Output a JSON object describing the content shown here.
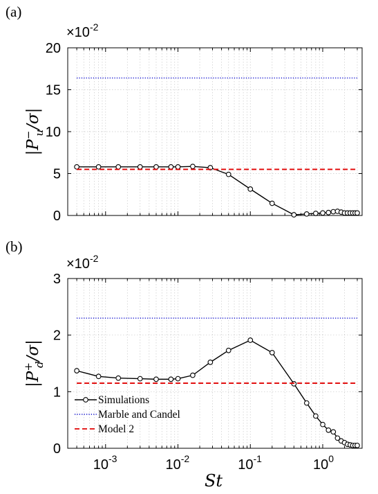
{
  "chart_data": [
    {
      "panel_label": "(a)",
      "type": "line",
      "xscale": "log",
      "xlim": [
        0.0003,
        3.5
      ],
      "ylim": [
        0,
        20
      ],
      "y_multiplier": "×10",
      "y_multiplier_exp": "-2",
      "yticks": [
        "0",
        "5",
        "10",
        "15",
        "20"
      ],
      "ylabel": "|P_u^- / σ|",
      "grid": true,
      "series": [
        {
          "name": "Simulations",
          "style": "black-solid-circles",
          "x": [
            0.0004,
            0.0008,
            0.0015,
            0.003,
            0.005,
            0.008,
            0.01,
            0.016,
            0.028,
            0.05,
            0.1,
            0.2,
            0.4,
            0.6,
            0.8,
            1.0,
            1.2,
            1.4,
            1.6,
            1.8,
            2.0,
            2.2,
            2.4,
            2.6,
            2.8,
            3.0
          ],
          "y": [
            5.8,
            5.8,
            5.8,
            5.8,
            5.8,
            5.8,
            5.8,
            5.85,
            5.7,
            4.9,
            3.15,
            1.45,
            0.08,
            0.18,
            0.25,
            0.3,
            0.35,
            0.45,
            0.5,
            0.4,
            0.3,
            0.3,
            0.3,
            0.3,
            0.3,
            0.3
          ]
        },
        {
          "name": "Marble and Candel",
          "style": "blue-dotted",
          "x": [
            0.0004,
            3.0
          ],
          "y": [
            16.4,
            16.4
          ]
        },
        {
          "name": "Model 2",
          "style": "red-dashed",
          "x": [
            0.0004,
            3.0
          ],
          "y": [
            5.5,
            5.5
          ]
        }
      ]
    },
    {
      "panel_label": "(b)",
      "type": "line",
      "xscale": "log",
      "xlim": [
        0.0003,
        3.5
      ],
      "ylim": [
        0,
        3
      ],
      "y_multiplier": "×10",
      "y_multiplier_exp": "-2",
      "yticks": [
        "0",
        "1",
        "2",
        "3"
      ],
      "xticks": [
        {
          "base": "10",
          "exp": "-3",
          "v": 0.001
        },
        {
          "base": "10",
          "exp": "-2",
          "v": 0.01
        },
        {
          "base": "10",
          "exp": "-1",
          "v": 0.1
        },
        {
          "base": "10",
          "exp": "0",
          "v": 1
        }
      ],
      "xlabel": "St",
      "ylabel": "|P_d^+ / σ|",
      "grid": true,
      "legend_position": "bottom-left",
      "series": [
        {
          "name": "Simulations",
          "style": "black-solid-circles",
          "x": [
            0.0004,
            0.0008,
            0.0015,
            0.003,
            0.005,
            0.008,
            0.01,
            0.016,
            0.028,
            0.05,
            0.1,
            0.2,
            0.4,
            0.6,
            0.8,
            1.0,
            1.2,
            1.4,
            1.6,
            1.8,
            2.0,
            2.2,
            2.4,
            2.6,
            2.8,
            3.0
          ],
          "y": [
            1.37,
            1.27,
            1.24,
            1.23,
            1.22,
            1.22,
            1.23,
            1.29,
            1.52,
            1.73,
            1.91,
            1.69,
            1.14,
            0.8,
            0.57,
            0.42,
            0.32,
            0.29,
            0.18,
            0.13,
            0.1,
            0.07,
            0.06,
            0.05,
            0.05,
            0.05
          ]
        },
        {
          "name": "Marble and Candel",
          "style": "blue-dotted",
          "x": [
            0.0004,
            3.0
          ],
          "y": [
            2.3,
            2.3
          ]
        },
        {
          "name": "Model 2",
          "style": "red-dashed",
          "x": [
            0.0004,
            3.0
          ],
          "y": [
            1.15,
            1.15
          ]
        }
      ]
    }
  ]
}
